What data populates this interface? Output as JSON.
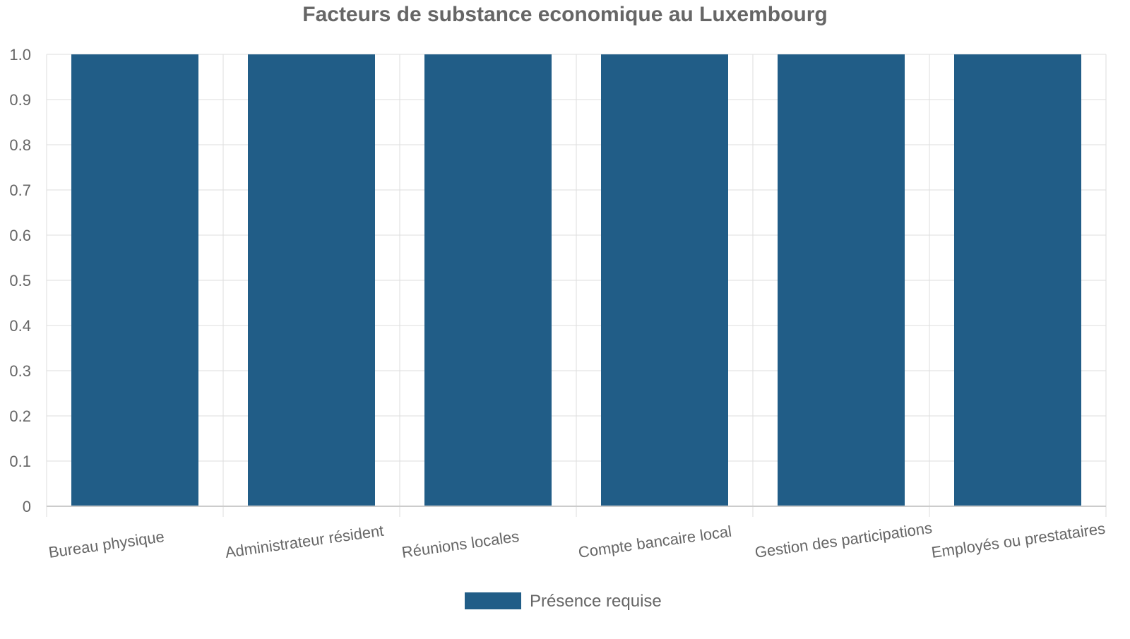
{
  "chart_data": {
    "type": "bar",
    "title": "Facteurs de substance economique au Luxembourg",
    "xlabel": "",
    "ylabel": "",
    "categories": [
      "Bureau physique",
      "Administrateur résident",
      "Réunions locales",
      "Compte bancaire local",
      "Gestion des participations",
      "Employés ou prestataires"
    ],
    "series": [
      {
        "name": "Présence requise",
        "color": "#215d87",
        "values": [
          1,
          1,
          1,
          1,
          1,
          1
        ]
      }
    ],
    "ylim": [
      0,
      1
    ],
    "yticks": [
      "0",
      "0.1",
      "0.2",
      "0.3",
      "0.4",
      "0.5",
      "0.6",
      "0.7",
      "0.8",
      "0.9",
      "1.0"
    ],
    "grid": true,
    "legend_position": "bottom-center"
  }
}
